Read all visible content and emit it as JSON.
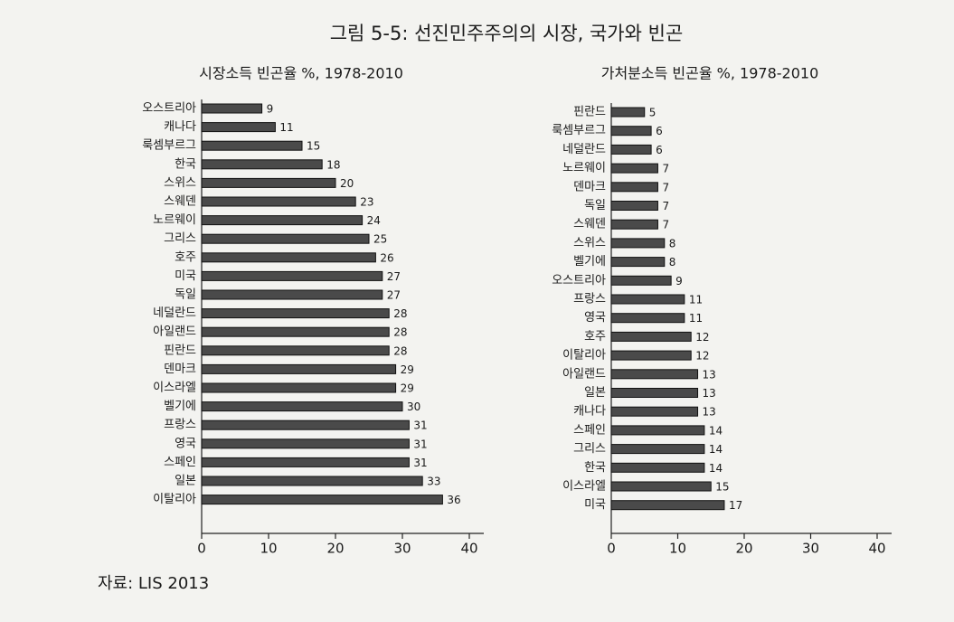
{
  "title": "그림 5-5: 선진민주주의의 시장, 국가와 빈곤",
  "chart_data": [
    {
      "type": "barh",
      "title": "시장소득 빈곤율 %, 1978-2010",
      "categories": [
        "오스트리아",
        "캐나다",
        "룩셈부르그",
        "한국",
        "스위스",
        "스웨덴",
        "노르웨이",
        "그리스",
        "호주",
        "미국",
        "독일",
        "네덜란드",
        "아일랜드",
        "핀란드",
        "덴마크",
        "이스라엘",
        "벨기에",
        "프랑스",
        "영국",
        "스페인",
        "일본",
        "이탈리아"
      ],
      "values": [
        9,
        11,
        15,
        18,
        20,
        23,
        24,
        25,
        26,
        27,
        27,
        28,
        28,
        28,
        29,
        29,
        30,
        31,
        31,
        31,
        33,
        36
      ],
      "color": "#4a4a4a",
      "xlim": [
        0,
        40
      ],
      "xticks": [
        0,
        10,
        20,
        30,
        40
      ]
    },
    {
      "type": "barh",
      "title": "가처분소득 빈곤율 %, 1978-2010",
      "categories": [
        "핀란드",
        "룩셈부르그",
        "네덜란드",
        "노르웨이",
        "덴마크",
        "독일",
        "스웨덴",
        "스위스",
        "벨기에",
        "오스트리아",
        "프랑스",
        "영국",
        "호주",
        "이탈리아",
        "아일랜드",
        "일본",
        "캐나다",
        "스페인",
        "그리스",
        "한국",
        "이스라엘",
        "미국"
      ],
      "values": [
        5,
        6,
        6,
        7,
        7,
        7,
        7,
        8,
        8,
        9,
        11,
        11,
        12,
        12,
        13,
        13,
        13,
        14,
        14,
        14,
        15,
        17
      ],
      "color": "#4a4a4a",
      "xlim": [
        0,
        40
      ],
      "xticks": [
        0,
        10,
        20,
        30,
        40
      ]
    }
  ],
  "source": "자료: LIS 2013"
}
